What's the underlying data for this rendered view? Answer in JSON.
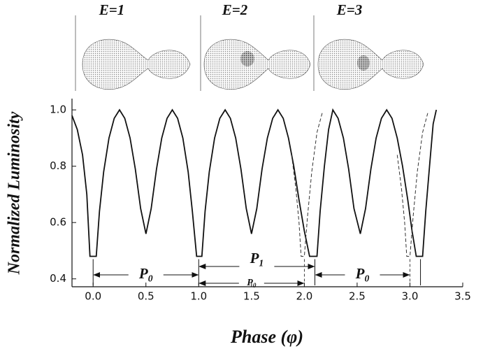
{
  "chart_data": {
    "type": "line",
    "panel_labels": [
      "E=1",
      "E=2",
      "E=3"
    ],
    "xlabel": "Phase  (φ)",
    "ylabel": "Normalized Luminosity",
    "xlim": [
      -0.2,
      3.5
    ],
    "ylim": [
      0.372,
      1.04
    ],
    "xticks": [
      {
        "value": 0,
        "label": "0.0"
      },
      0.5,
      {
        "value": 1,
        "label": "1.0"
      },
      1.5,
      {
        "value": 2,
        "label": "2.0"
      },
      2.5,
      {
        "value": 3,
        "label": "3.0"
      },
      3.5
    ],
    "yticks": [
      0.4,
      0.6,
      0.8,
      {
        "value": 1,
        "label": "1.0"
      }
    ],
    "series": [
      {
        "style": "solid",
        "color": "#111111",
        "x": [
          -0.2,
          -0.15,
          -0.1,
          -0.06,
          -0.03,
          0.03,
          0.06,
          0.1,
          0.15,
          0.2,
          0.25,
          0.3,
          0.35,
          0.4,
          0.45,
          0.5,
          0.55,
          0.6,
          0.65,
          0.7,
          0.75,
          0.8,
          0.85,
          0.9,
          0.94,
          0.98,
          1.03,
          1.06,
          1.1,
          1.15,
          1.2,
          1.25,
          1.3,
          1.35,
          1.4,
          1.45,
          1.5,
          1.55,
          1.6,
          1.65,
          1.7,
          1.75,
          1.8,
          1.85,
          1.9,
          1.95,
          2.0,
          2.05,
          2.12,
          2.15,
          2.19,
          2.23,
          2.27,
          2.32,
          2.37,
          2.42,
          2.47,
          2.53,
          2.58,
          2.63,
          2.68,
          2.73,
          2.78,
          2.83,
          2.88,
          2.93,
          2.98,
          3.02,
          3.06,
          3.12,
          3.15,
          3.19,
          3.22,
          3.25
        ],
        "values": [
          0.98,
          0.93,
          0.84,
          0.7,
          0.48,
          0.48,
          0.64,
          0.78,
          0.9,
          0.97,
          1.0,
          0.97,
          0.9,
          0.79,
          0.65,
          0.56,
          0.65,
          0.79,
          0.9,
          0.97,
          1.0,
          0.97,
          0.9,
          0.78,
          0.64,
          0.48,
          0.48,
          0.64,
          0.78,
          0.9,
          0.97,
          1.0,
          0.97,
          0.9,
          0.79,
          0.65,
          0.56,
          0.65,
          0.79,
          0.9,
          0.97,
          1.0,
          0.97,
          0.9,
          0.8,
          0.68,
          0.57,
          0.48,
          0.48,
          0.64,
          0.8,
          0.93,
          1.0,
          0.97,
          0.9,
          0.79,
          0.65,
          0.56,
          0.65,
          0.79,
          0.9,
          0.97,
          1.0,
          0.97,
          0.9,
          0.8,
          0.68,
          0.57,
          0.48,
          0.48,
          0.64,
          0.82,
          0.95,
          1.0
        ]
      },
      {
        "style": "dashed",
        "color": "#333333",
        "x": [
          1.88,
          1.92,
          1.95,
          1.97,
          2.0,
          2.03,
          2.07,
          2.12,
          2.17,
          null,
          2.88,
          2.92,
          2.95,
          2.97,
          3.0,
          3.03,
          3.07,
          3.12,
          3.17
        ],
        "values": [
          0.84,
          0.72,
          0.6,
          0.48,
          0.48,
          0.62,
          0.78,
          0.92,
          0.99,
          null,
          0.84,
          0.72,
          0.6,
          0.48,
          0.48,
          0.62,
          0.78,
          0.92,
          0.99
        ]
      }
    ],
    "markers": [
      {
        "x": 0,
        "style": "solid"
      },
      {
        "x": 1,
        "style": "solid"
      },
      {
        "x": 2.1,
        "style": "solid"
      },
      {
        "x": 3.1,
        "style": "solid"
      },
      {
        "x": 2.0,
        "style": "dashed"
      },
      {
        "x": 3.0,
        "style": "dashed"
      }
    ],
    "annotations": [
      {
        "label": "P",
        "sub": "0",
        "start": 0,
        "end": 1
      },
      {
        "label": "P",
        "sub": "1",
        "start": 1,
        "end": 2.1
      },
      {
        "label": "P",
        "sub": "0",
        "start": 1,
        "end": 2.0
      },
      {
        "label": "P",
        "sub": "0",
        "start": 2.1,
        "end": 3.0
      }
    ]
  }
}
